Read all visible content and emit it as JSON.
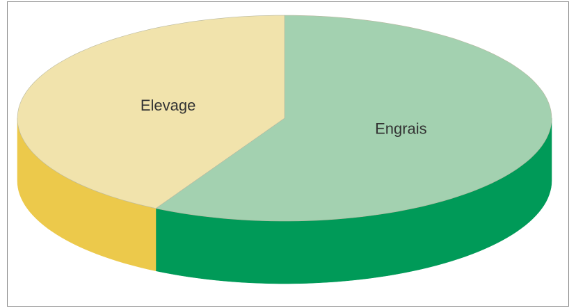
{
  "chart_data": {
    "type": "pie",
    "three_d": true,
    "categories": [
      "Engrais",
      "Elevage"
    ],
    "values": [
      58,
      42
    ],
    "colors": [
      "#a3d1b0",
      "#f1e3ac"
    ],
    "side_colors": [
      "#009a58",
      "#ecc94b"
    ]
  }
}
